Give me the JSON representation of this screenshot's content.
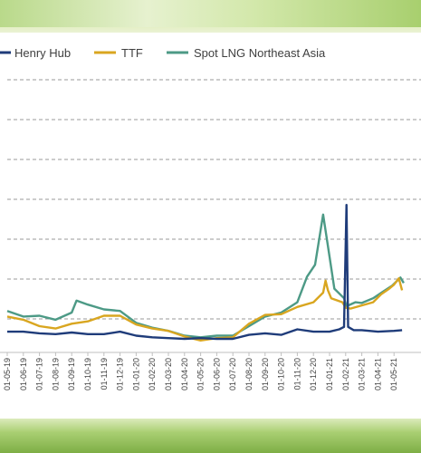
{
  "chart_data": {
    "type": "line",
    "title": "",
    "xlabel": "",
    "ylabel": "",
    "legend_position": "top",
    "grid": "horizontal-dashed",
    "x_ticks": [
      "01-05-19",
      "01-06-19",
      "01-07-19",
      "01-08-19",
      "01-09-19",
      "01-10-19",
      "01-11-19",
      "01-12-19",
      "01-01-20",
      "01-02-20",
      "01-03-20",
      "01-04-20",
      "01-05-20",
      "01-06-20",
      "01-07-20",
      "01-08-20",
      "01-09-20",
      "01-10-20",
      "01-11-20",
      "01-12-20",
      "01-01-21",
      "01-02-21",
      "01-03-21",
      "01-04-21",
      "01-05-21"
    ],
    "y_gridlines": 7,
    "series": [
      {
        "name": "Henry Hub",
        "color": "#1f3c7a",
        "points": [
          [
            0,
            2.6
          ],
          [
            1,
            2.6
          ],
          [
            2,
            2.4
          ],
          [
            3,
            2.3
          ],
          [
            4,
            2.5
          ],
          [
            5,
            2.3
          ],
          [
            6,
            2.3
          ],
          [
            7,
            2.6
          ],
          [
            8,
            2.1
          ],
          [
            9,
            1.9
          ],
          [
            10,
            1.8
          ],
          [
            11,
            1.7
          ],
          [
            12,
            1.8
          ],
          [
            13,
            1.7
          ],
          [
            14,
            1.7
          ],
          [
            15,
            2.2
          ],
          [
            16,
            2.4
          ],
          [
            17,
            2.2
          ],
          [
            18,
            2.9
          ],
          [
            19,
            2.6
          ],
          [
            20,
            2.6
          ],
          [
            20.6,
            2.9
          ],
          [
            20.9,
            3.2
          ],
          [
            21.05,
            18.5
          ],
          [
            21.15,
            3.2
          ],
          [
            21.5,
            2.8
          ],
          [
            22,
            2.8
          ],
          [
            23,
            2.6
          ],
          [
            24,
            2.7
          ],
          [
            24.5,
            2.8
          ]
        ]
      },
      {
        "name": "TTF",
        "color": "#d9a620",
        "points": [
          [
            0,
            4.5
          ],
          [
            1,
            4.1
          ],
          [
            2,
            3.3
          ],
          [
            3,
            3.0
          ],
          [
            4,
            3.6
          ],
          [
            5,
            3.9
          ],
          [
            6,
            4.6
          ],
          [
            7,
            4.6
          ],
          [
            8,
            3.5
          ],
          [
            9,
            3.0
          ],
          [
            10,
            2.7
          ],
          [
            11,
            2.0
          ],
          [
            12,
            1.5
          ],
          [
            13,
            1.8
          ],
          [
            14,
            1.9
          ],
          [
            15,
            3.6
          ],
          [
            16,
            4.7
          ],
          [
            17,
            4.8
          ],
          [
            18,
            5.7
          ],
          [
            19,
            6.3
          ],
          [
            19.6,
            7.5
          ],
          [
            19.75,
            9.0
          ],
          [
            19.9,
            7.8
          ],
          [
            20.1,
            6.8
          ],
          [
            20.8,
            6.3
          ],
          [
            21.0,
            5.6
          ],
          [
            21.3,
            5.5
          ],
          [
            22,
            5.9
          ],
          [
            22.7,
            6.3
          ],
          [
            23.2,
            7.3
          ],
          [
            23.7,
            8.0
          ],
          [
            24,
            8.5
          ],
          [
            24.3,
            9.3
          ],
          [
            24.5,
            7.8
          ]
        ]
      },
      {
        "name": "Spot LNG Northeast Asia",
        "color": "#4d9a86",
        "points": [
          [
            0,
            5.2
          ],
          [
            1,
            4.5
          ],
          [
            2,
            4.6
          ],
          [
            3,
            4.1
          ],
          [
            4,
            5.0
          ],
          [
            4.3,
            6.5
          ],
          [
            5,
            6.0
          ],
          [
            6,
            5.4
          ],
          [
            7,
            5.2
          ],
          [
            8,
            3.7
          ],
          [
            9,
            3.1
          ],
          [
            10,
            2.7
          ],
          [
            11,
            2.1
          ],
          [
            12,
            1.9
          ],
          [
            13,
            2.1
          ],
          [
            14,
            2.1
          ],
          [
            15,
            3.3
          ],
          [
            16,
            4.5
          ],
          [
            17,
            5.0
          ],
          [
            18,
            6.3
          ],
          [
            18.6,
            9.5
          ],
          [
            19.1,
            11.0
          ],
          [
            19.6,
            17.3
          ],
          [
            20.0,
            12.0
          ],
          [
            20.3,
            8.0
          ],
          [
            20.9,
            6.8
          ],
          [
            21.05,
            5.8
          ],
          [
            21.6,
            6.3
          ],
          [
            22,
            6.2
          ],
          [
            22.7,
            6.8
          ],
          [
            23.3,
            7.6
          ],
          [
            23.9,
            8.4
          ],
          [
            24.4,
            9.4
          ],
          [
            24.6,
            8.7
          ]
        ]
      }
    ]
  }
}
